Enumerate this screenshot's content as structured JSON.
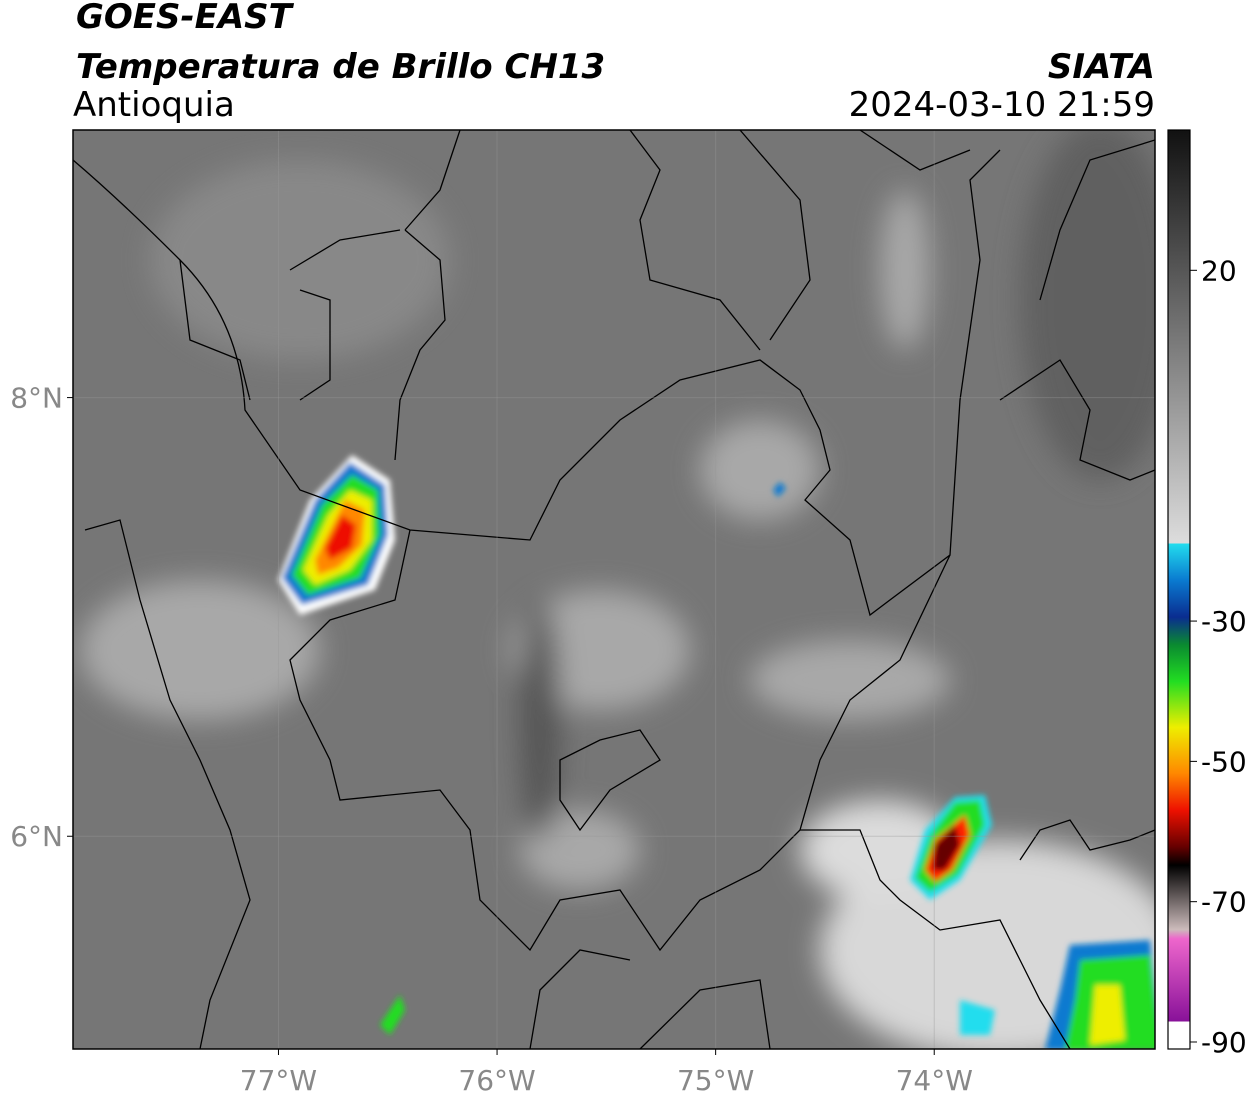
{
  "header": {
    "title": "GOES-EAST",
    "subtitle": "Temperatura de Brillo CH13",
    "region": "Antioquia",
    "source": "SIATA",
    "datetime": "2024-03-10 21:59"
  },
  "map": {
    "xlim": [
      -77.94,
      -72.99
    ],
    "ylim": [
      5.03,
      9.22
    ],
    "xticks": [
      {
        "value": -77,
        "label": "77°W"
      },
      {
        "value": -76,
        "label": "76°W"
      },
      {
        "value": -75,
        "label": "75°W"
      },
      {
        "value": -74,
        "label": "74°W"
      }
    ],
    "yticks": [
      {
        "value": 6,
        "label": "6°N"
      },
      {
        "value": 8,
        "label": "8°N"
      }
    ],
    "grid": true
  },
  "colorbar": {
    "lim": [
      -91,
      40
    ],
    "ticks": [
      20,
      -30,
      -50,
      -70,
      -90
    ]
  }
}
